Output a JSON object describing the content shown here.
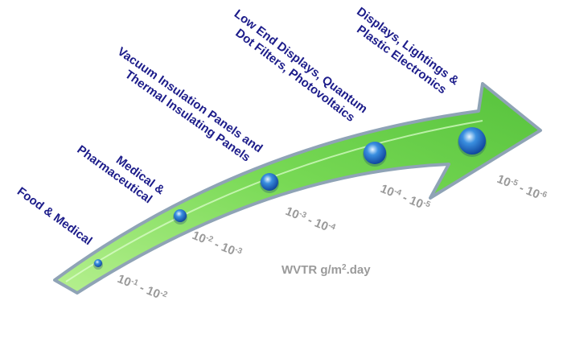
{
  "stages": [
    {
      "label": [
        "Food & Medical"
      ],
      "range": [
        [
          "10",
          "-1"
        ],
        [
          "10",
          "-2"
        ]
      ]
    },
    {
      "label": [
        "Medical &",
        "Pharmaceutical"
      ],
      "range": [
        [
          "10",
          "-2"
        ],
        [
          "10",
          "-3"
        ]
      ]
    },
    {
      "label": [
        "Vacuum Insulation Panels and",
        "Thermal Insulating Panels"
      ],
      "range": [
        [
          "10",
          "-3"
        ],
        [
          "10",
          "-4"
        ]
      ]
    },
    {
      "label": [
        "Low End Displays, Quantum",
        "Dot Filters, Photovoltaics"
      ],
      "range": [
        [
          "10",
          "-4"
        ],
        [
          "10",
          "-5"
        ]
      ]
    },
    {
      "label": [
        "Displays, Lightings &",
        "Plastic Electronics"
      ],
      "range": [
        [
          "10",
          "-5"
        ],
        [
          "10",
          "-6"
        ]
      ]
    }
  ],
  "range_separator": " - ",
  "axis_label": [
    "WVTR g/m",
    "2",
    ".day"
  ]
}
